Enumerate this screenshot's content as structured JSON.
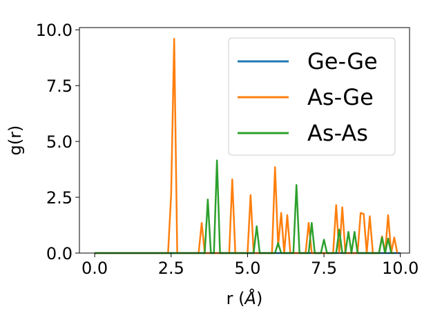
{
  "chart_data": {
    "type": "line",
    "xlabel": "r",
    "xlabel_unit": "Å",
    "ylabel": "g(r)",
    "xlim": [
      -0.5,
      10.3
    ],
    "ylim": [
      0.0,
      10.1
    ],
    "xticks": [
      0.0,
      2.5,
      5.0,
      7.5,
      10.0
    ],
    "xtick_labels": [
      "0.0",
      "2.5",
      "5.0",
      "7.5",
      "10.0"
    ],
    "yticks": [
      0.0,
      2.5,
      5.0,
      7.5,
      10.0
    ],
    "ytick_labels": [
      "0.0",
      "2.5",
      "5.0",
      "7.5",
      "10.0"
    ],
    "grid": false,
    "legend_position": "top-right",
    "series": [
      {
        "name": "Ge-Ge",
        "color": "#1f77b4",
        "x": [
          0.0,
          10.0
        ],
        "y": [
          0.0,
          0.0
        ]
      },
      {
        "name": "As-Ge",
        "color": "#ff7f0e",
        "x": [
          0.0,
          2.4,
          2.5,
          2.6,
          2.7,
          3.4,
          3.5,
          3.6,
          4.4,
          4.5,
          4.6,
          5.0,
          5.1,
          5.2,
          5.8,
          5.9,
          6.0,
          6.1,
          6.2,
          6.3,
          6.4,
          6.5,
          6.9,
          7.0,
          7.1,
          7.8,
          7.9,
          8.0,
          8.1,
          8.2,
          8.6,
          8.7,
          8.8,
          8.9,
          9.0,
          9.1,
          9.3,
          9.4,
          9.5,
          9.6,
          9.7,
          9.8,
          9.9
        ],
        "y": [
          0.0,
          0.0,
          2.6,
          9.6,
          0.0,
          0.0,
          1.35,
          0.0,
          0.0,
          3.3,
          0.0,
          0.0,
          2.6,
          0.0,
          0.0,
          3.85,
          0.3,
          1.8,
          0.0,
          1.7,
          0.0,
          0.0,
          0.0,
          1.35,
          0.0,
          0.0,
          2.15,
          0.0,
          2.05,
          0.0,
          0.0,
          1.8,
          1.75,
          0.0,
          1.65,
          0.0,
          0.0,
          0.75,
          0.0,
          1.7,
          0.0,
          0.7,
          0.0
        ]
      },
      {
        "name": "As-As",
        "color": "#2ca02c",
        "x": [
          0.0,
          3.6,
          3.7,
          3.8,
          3.9,
          4.0,
          4.1,
          5.2,
          5.3,
          5.4,
          5.9,
          6.0,
          6.1,
          6.5,
          6.6,
          6.7,
          7.0,
          7.1,
          7.2,
          7.4,
          7.5,
          7.6,
          7.9,
          8.0,
          8.1,
          8.2,
          8.3,
          8.4,
          8.5,
          8.6,
          9.3,
          9.4,
          9.5,
          9.6,
          9.7,
          9.8
        ],
        "y": [
          0.0,
          0.0,
          2.4,
          0.0,
          0.0,
          4.15,
          0.0,
          0.0,
          1.2,
          0.0,
          0.0,
          0.45,
          0.0,
          0.0,
          3.05,
          0.0,
          0.0,
          1.35,
          0.0,
          0.0,
          0.6,
          0.0,
          0.0,
          1.05,
          0.0,
          0.0,
          0.95,
          0.0,
          0.95,
          0.0,
          0.0,
          0.7,
          0.0,
          0.65,
          0.0,
          0.0
        ]
      }
    ]
  }
}
